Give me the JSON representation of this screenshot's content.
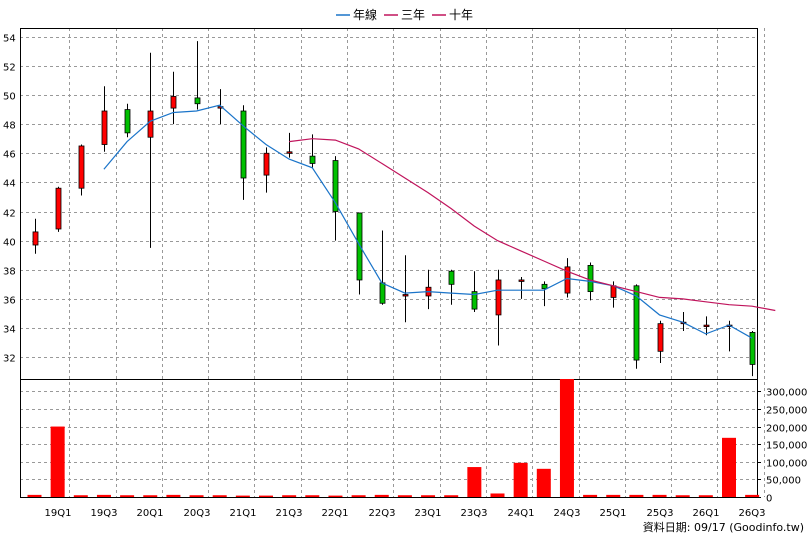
{
  "legend": [
    {
      "name": "年線",
      "color": "#1a74c9"
    },
    {
      "name": "三年",
      "color": "#c0145c"
    },
    {
      "name": "十年",
      "color": "#c0145c"
    }
  ],
  "source_note": "資料日期: 09/17  (Goodinfo.tw)",
  "colors": {
    "up": "#ff0000",
    "down": "#00c000",
    "volume": "#ff0000",
    "year_line": "#1a74c9",
    "three_year_line": "#c0145c"
  },
  "chart_data": {
    "type": "candlestick",
    "price_axis": {
      "ylim": [
        30.5,
        54.6
      ],
      "ticks": [
        32,
        34,
        36,
        38,
        40,
        42,
        44,
        46,
        48,
        50,
        52,
        54
      ]
    },
    "volume_axis": {
      "ylim": [
        0,
        335000
      ],
      "ticks": [
        0,
        50000,
        100000,
        150000,
        200000,
        250000,
        300000
      ],
      "tick_labels": [
        "0",
        "50,000",
        "100,000",
        "150,000",
        "200,000",
        "250,000",
        "300,000"
      ]
    },
    "x_labels": [
      {
        "index": 1,
        "label": "19Q1"
      },
      {
        "index": 3,
        "label": "19Q3"
      },
      {
        "index": 5,
        "label": "20Q1"
      },
      {
        "index": 7,
        "label": "20Q3"
      },
      {
        "index": 9,
        "label": "21Q1"
      },
      {
        "index": 11,
        "label": "21Q3"
      },
      {
        "index": 13,
        "label": "22Q1"
      },
      {
        "index": 15,
        "label": "22Q3"
      },
      {
        "index": 17,
        "label": "23Q1"
      },
      {
        "index": 19,
        "label": "23Q3"
      },
      {
        "index": 21,
        "label": "24Q1"
      },
      {
        "index": 23,
        "label": "24Q3"
      },
      {
        "index": 25,
        "label": "25Q1"
      },
      {
        "index": 27,
        "label": "25Q3"
      },
      {
        "index": 29,
        "label": "26Q1"
      },
      {
        "index": 31,
        "label": "26Q3"
      }
    ],
    "candles": [
      {
        "o": 39.7,
        "h": 41.5,
        "l": 39.1,
        "c": 40.6,
        "v": 6000
      },
      {
        "o": 40.8,
        "h": 43.7,
        "l": 40.6,
        "c": 43.6,
        "v": 200000
      },
      {
        "o": 43.6,
        "h": 46.6,
        "l": 43.1,
        "c": 46.5,
        "v": 5000
      },
      {
        "o": 46.6,
        "h": 50.6,
        "l": 46.1,
        "c": 48.9,
        "v": 6000
      },
      {
        "o": 49.0,
        "h": 49.4,
        "l": 47.1,
        "c": 47.4,
        "v": 5000
      },
      {
        "o": 47.1,
        "h": 52.9,
        "l": 39.5,
        "c": 48.9,
        "v": 5000
      },
      {
        "o": 49.1,
        "h": 51.6,
        "l": 48.0,
        "c": 49.9,
        "v": 6000
      },
      {
        "o": 49.8,
        "h": 53.7,
        "l": 49.0,
        "c": 49.4,
        "v": 5000
      },
      {
        "o": 49.2,
        "h": 50.4,
        "l": 48.0,
        "c": 49.2,
        "v": 5000
      },
      {
        "o": 48.9,
        "h": 49.3,
        "l": 42.8,
        "c": 44.3,
        "v": 4000
      },
      {
        "o": 44.5,
        "h": 46.4,
        "l": 43.3,
        "c": 46.0,
        "v": 4000
      },
      {
        "o": 46.1,
        "h": 47.4,
        "l": 45.7,
        "c": 46.1,
        "v": 5000
      },
      {
        "o": 45.8,
        "h": 47.3,
        "l": 45.0,
        "c": 45.3,
        "v": 5000
      },
      {
        "o": 45.5,
        "h": 45.8,
        "l": 40.0,
        "c": 42.0,
        "v": 4000
      },
      {
        "o": 41.9,
        "h": 41.9,
        "l": 36.3,
        "c": 37.3,
        "v": 5000
      },
      {
        "o": 37.1,
        "h": 40.7,
        "l": 35.6,
        "c": 35.7,
        "v": 6000
      },
      {
        "o": 36.3,
        "h": 39.0,
        "l": 34.4,
        "c": 36.3,
        "v": 5000
      },
      {
        "o": 36.2,
        "h": 38.0,
        "l": 35.3,
        "c": 36.8,
        "v": 5000
      },
      {
        "o": 37.9,
        "h": 38.0,
        "l": 35.6,
        "c": 37.0,
        "v": 5000
      },
      {
        "o": 36.5,
        "h": 37.9,
        "l": 35.1,
        "c": 35.3,
        "v": 85000
      },
      {
        "o": 34.9,
        "h": 38.0,
        "l": 32.8,
        "c": 37.3,
        "v": 10000
      },
      {
        "o": 37.2,
        "h": 37.5,
        "l": 36.0,
        "c": 37.3,
        "v": 97000
      },
      {
        "o": 37.0,
        "h": 37.2,
        "l": 35.5,
        "c": 36.7,
        "v": 80000
      },
      {
        "o": 36.4,
        "h": 38.8,
        "l": 36.1,
        "c": 38.2,
        "v": 335000
      },
      {
        "o": 38.3,
        "h": 38.5,
        "l": 35.9,
        "c": 36.5,
        "v": 6000
      },
      {
        "o": 36.1,
        "h": 37.2,
        "l": 35.4,
        "c": 36.9,
        "v": 6000
      },
      {
        "o": 36.9,
        "h": 37.0,
        "l": 31.2,
        "c": 31.8,
        "v": 6000
      },
      {
        "o": 32.4,
        "h": 34.5,
        "l": 31.6,
        "c": 34.3,
        "v": 6000
      },
      {
        "o": 34.4,
        "h": 35.1,
        "l": 33.8,
        "c": 34.4,
        "v": 5000
      },
      {
        "o": 34.1,
        "h": 34.8,
        "l": 33.5,
        "c": 34.2,
        "v": 5000
      },
      {
        "o": 34.2,
        "h": 34.5,
        "l": 32.4,
        "c": 34.2,
        "v": 168000
      },
      {
        "o": 33.7,
        "h": 33.8,
        "l": 30.7,
        "c": 31.5,
        "v": 6000
      }
    ],
    "year_line": {
      "start_index": 3,
      "values": [
        44.9,
        46.8,
        48.2,
        48.8,
        48.9,
        49.3,
        47.9,
        46.6,
        45.6,
        45.0,
        42.6,
        39.8,
        37.1,
        36.4,
        36.5,
        36.4,
        36.3,
        36.6,
        36.6,
        36.6,
        37.4,
        37.2,
        36.9,
        36.2,
        34.9,
        34.4,
        33.6,
        34.2,
        33.3
      ]
    },
    "three_year_line": {
      "start_index": 11,
      "values": [
        46.8,
        47.0,
        46.9,
        46.3,
        45.3,
        44.3,
        43.3,
        42.2,
        41.0,
        40.0,
        39.3,
        38.6,
        37.9,
        37.3,
        36.9,
        36.5,
        36.1,
        36.0,
        35.8,
        35.6,
        35.5,
        35.2
      ]
    }
  }
}
